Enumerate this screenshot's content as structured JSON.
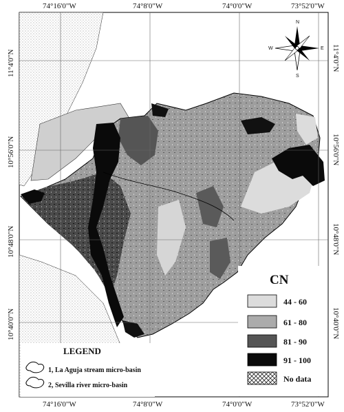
{
  "map": {
    "top_coords": [
      "74°16'0\"W",
      "74°8'0\"W",
      "74°0'0\"W",
      "73°52'0\"W"
    ],
    "bottom_coords": [
      "74°16'0\"W",
      "74°8'0\"W",
      "74°0'0\"W",
      "73°52'0\"W"
    ],
    "left_coords": [
      "11°4'0\"N",
      "10°56'0\"N",
      "10°48'0\"N",
      "10°40'0\"N"
    ],
    "right_coords": [
      "11°4'0\"N",
      "10°56'0\"N",
      "10°48'0\"N",
      "10°40'0\"N"
    ],
    "compass": {
      "n": "N",
      "s": "S",
      "e": "E",
      "w": "W"
    },
    "legend": {
      "title": "LEGEND",
      "items": [
        "1, La Aguja stream micro-basin",
        "2, Sevilla river micro-basin"
      ]
    },
    "cn_legend": {
      "title": "CN",
      "classes": [
        {
          "label": "44 - 60",
          "color": "#dcdcdc"
        },
        {
          "label": "61 - 80",
          "color": "#ababab"
        },
        {
          "label": "81 - 90",
          "color": "#555555"
        },
        {
          "label": "91 - 100",
          "color": "#0a0a0a"
        },
        {
          "label": "No data",
          "color": "hatched"
        }
      ]
    }
  }
}
